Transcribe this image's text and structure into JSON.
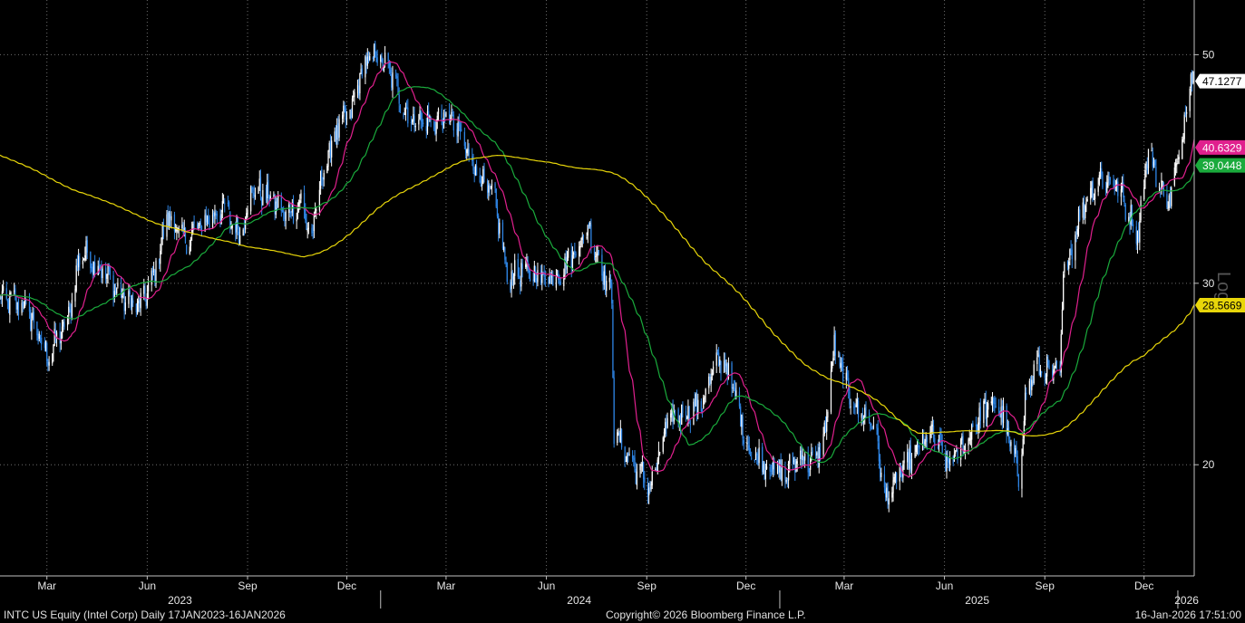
{
  "chart_data": {
    "type": "candlestick-line",
    "scale": "log",
    "ylim": [
      15.6,
      56.5
    ],
    "y_ticks": [
      20,
      30,
      50
    ],
    "y_axis_label": "Log",
    "x_start": "2023-01-17",
    "x_end": "2026-01-16",
    "month_ticks": [
      {
        "label": "Mar",
        "date": "2023-03-01"
      },
      {
        "label": "Jun",
        "date": "2023-06-01"
      },
      {
        "label": "Sep",
        "date": "2023-09-01"
      },
      {
        "label": "Dec",
        "date": "2023-12-01"
      },
      {
        "label": "Mar",
        "date": "2024-03-01"
      },
      {
        "label": "Jun",
        "date": "2024-06-01"
      },
      {
        "label": "Sep",
        "date": "2024-09-01"
      },
      {
        "label": "Dec",
        "date": "2024-12-01"
      },
      {
        "label": "Mar",
        "date": "2025-03-01"
      },
      {
        "label": "Jun",
        "date": "2025-06-01"
      },
      {
        "label": "Sep",
        "date": "2025-09-01"
      },
      {
        "label": "Dec",
        "date": "2025-12-01"
      }
    ],
    "year_ticks": [
      {
        "label": "2023",
        "date": "2023-07-01"
      },
      {
        "label": "2024",
        "date": "2024-07-01"
      },
      {
        "label": "2025",
        "date": "2025-07-01"
      },
      {
        "label": "2026",
        "date": "2026-01-09"
      }
    ],
    "year_separators": [
      "2024-01-01",
      "2025-01-01",
      "2026-01-01"
    ],
    "price_series": {
      "name": "INTC",
      "color": "#2f86e6",
      "anchors": [
        [
          "2023-01-17",
          29.0
        ],
        [
          "2023-02-10",
          28.5
        ],
        [
          "2023-03-01",
          25.5
        ],
        [
          "2023-03-20",
          27.5
        ],
        [
          "2023-04-01",
          32.3
        ],
        [
          "2023-04-20",
          31.0
        ],
        [
          "2023-05-10",
          29.0
        ],
        [
          "2023-05-25",
          28.5
        ],
        [
          "2023-06-05",
          30.0
        ],
        [
          "2023-06-20",
          35.0
        ],
        [
          "2023-07-05",
          33.0
        ],
        [
          "2023-07-25",
          34.5
        ],
        [
          "2023-08-10",
          35.5
        ],
        [
          "2023-08-25",
          33.5
        ],
        [
          "2023-09-05",
          37.0
        ],
        [
          "2023-09-20",
          36.5
        ],
        [
          "2023-10-05",
          35.0
        ],
        [
          "2023-10-20",
          36.0
        ],
        [
          "2023-10-30",
          33.0
        ],
        [
          "2023-11-05",
          37.0
        ],
        [
          "2023-11-20",
          42.0
        ],
        [
          "2023-12-05",
          44.0
        ],
        [
          "2023-12-15",
          48.5
        ],
        [
          "2023-12-28",
          50.0
        ],
        [
          "2024-01-10",
          48.0
        ],
        [
          "2024-01-26",
          43.5
        ],
        [
          "2024-02-15",
          43.0
        ],
        [
          "2024-03-05",
          43.5
        ],
        [
          "2024-03-15",
          41.5
        ],
        [
          "2024-04-01",
          38.0
        ],
        [
          "2024-04-15",
          36.0
        ],
        [
          "2024-04-26",
          30.5
        ],
        [
          "2024-05-10",
          30.8
        ],
        [
          "2024-05-25",
          30.5
        ],
        [
          "2024-06-10",
          30.5
        ],
        [
          "2024-06-25",
          32.0
        ],
        [
          "2024-07-10",
          34.0
        ],
        [
          "2024-07-20",
          31.5
        ],
        [
          "2024-07-31",
          29.0
        ],
        [
          "2024-08-02",
          21.5
        ],
        [
          "2024-08-20",
          20.0
        ],
        [
          "2024-09-05",
          19.0
        ],
        [
          "2024-09-20",
          22.0
        ],
        [
          "2024-10-05",
          22.5
        ],
        [
          "2024-10-20",
          22.8
        ],
        [
          "2024-10-31",
          24.5
        ],
        [
          "2024-11-10",
          25.5
        ],
        [
          "2024-11-20",
          23.5
        ],
        [
          "2024-12-05",
          20.5
        ],
        [
          "2024-12-20",
          20.0
        ],
        [
          "2025-01-05",
          19.5
        ],
        [
          "2025-01-20",
          20.5
        ],
        [
          "2025-01-31",
          20.0
        ],
        [
          "2025-02-10",
          21.0
        ],
        [
          "2025-02-20",
          26.0
        ],
        [
          "2025-03-05",
          23.5
        ],
        [
          "2025-03-15",
          22.5
        ],
        [
          "2025-03-28",
          22.0
        ],
        [
          "2025-04-08",
          18.5
        ],
        [
          "2025-04-20",
          19.5
        ],
        [
          "2025-05-05",
          20.5
        ],
        [
          "2025-05-20",
          21.5
        ],
        [
          "2025-06-05",
          20.0
        ],
        [
          "2025-06-20",
          21.0
        ],
        [
          "2025-07-05",
          22.5
        ],
        [
          "2025-07-20",
          23.0
        ],
        [
          "2025-07-31",
          21.0
        ],
        [
          "2025-08-08",
          19.5
        ],
        [
          "2025-08-15",
          23.5
        ],
        [
          "2025-08-25",
          25.0
        ],
        [
          "2025-09-05",
          24.5
        ],
        [
          "2025-09-15",
          24.5
        ],
        [
          "2025-09-18",
          30.5
        ],
        [
          "2025-09-30",
          34.0
        ],
        [
          "2025-10-10",
          36.5
        ],
        [
          "2025-10-22",
          38.0
        ],
        [
          "2025-11-05",
          37.5
        ],
        [
          "2025-11-15",
          35.5
        ],
        [
          "2025-11-25",
          33.5
        ],
        [
          "2025-12-05",
          40.5
        ],
        [
          "2025-12-15",
          37.5
        ],
        [
          "2025-12-23",
          36.0
        ],
        [
          "2026-01-02",
          39.5
        ],
        [
          "2026-01-08",
          44.0
        ],
        [
          "2026-01-13",
          48.5
        ],
        [
          "2026-01-16",
          47.1277
        ]
      ],
      "last_value": "47.1277",
      "label_bg": "#ffffff",
      "label_fg": "#000000"
    },
    "moving_averages": [
      {
        "color": "#e0208e",
        "window": 20,
        "last_value": "40.6329",
        "label_fg": "#ffffff"
      },
      {
        "color": "#1aaa3c",
        "window": 50,
        "last_value": "39.0448",
        "label_fg": "#ffffff"
      },
      {
        "color": "#e8d60a",
        "window": 200,
        "last_value": "28.5669",
        "label_fg": "#000000"
      }
    ]
  },
  "footer": {
    "left": "INTC US Equity (Intel Corp) Daily 17JAN2023-16JAN2026",
    "center": "Copyright© 2026 Bloomberg Finance L.P.",
    "right": "16-Jan-2026 17:51:00"
  },
  "colors": {
    "background": "#000000",
    "grid": "#6e6e6e",
    "axis": "#bfbfbf",
    "candle_up": "#ffffff",
    "candle_down": "#2f86e6"
  }
}
